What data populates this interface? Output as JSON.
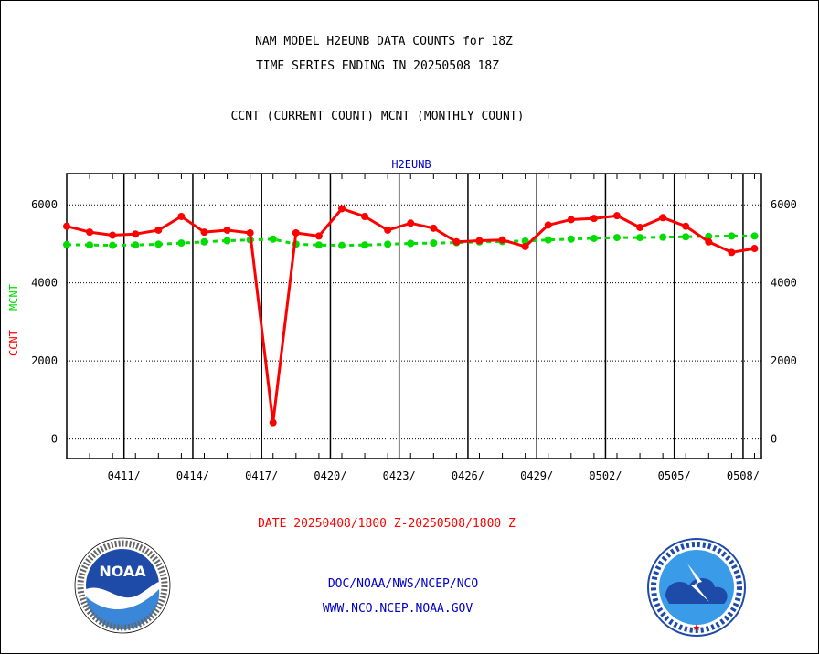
{
  "titles": {
    "line1": "NAM MODEL H2EUNB DATA COUNTS for 18Z",
    "line2": "TIME SERIES ENDING IN 20250508 18Z",
    "line3": "CCNT (CURRENT COUNT) MCNT (MONTHLY COUNT)"
  },
  "footer": {
    "date_range": "DATE 20250408/1800 Z-20250508/1800 Z",
    "link1": "DOC/NOAA/NWS/NCEP/NCO",
    "link2": "WWW.NCO.NCEP.NOAA.GOV"
  },
  "logos": {
    "noaa": {
      "text": "NOAA",
      "ring_text": "NATIONAL OCEANIC AND ATMOSPHERIC ADMINISTRATION · U.S. DEPARTMENT OF COMMERCE"
    },
    "nws": {
      "ring_text": "NATIONAL WEATHER SERVICE"
    }
  },
  "colors": {
    "ccnt": "#ff0000",
    "mcnt": "#00dd00",
    "station": "#0000cc",
    "axis": "#000000"
  },
  "chart_data": {
    "type": "line",
    "title": "H2EUNB",
    "ylabel_parts": [
      {
        "text": "CCNT",
        "color": "#ff0000"
      },
      {
        "text": "MCNT",
        "color": "#00dd00"
      }
    ],
    "ylim": [
      -500,
      6800
    ],
    "yticks": [
      0,
      2000,
      4000,
      6000
    ],
    "xlim": [
      0,
      30.3
    ],
    "xticks": [
      {
        "x": 2.5,
        "label": "0411/"
      },
      {
        "x": 5.5,
        "label": "0414/"
      },
      {
        "x": 8.5,
        "label": "0417/"
      },
      {
        "x": 11.5,
        "label": "0420/"
      },
      {
        "x": 14.5,
        "label": "0423/"
      },
      {
        "x": 17.5,
        "label": "0426/"
      },
      {
        "x": 20.5,
        "label": "0429/"
      },
      {
        "x": 23.5,
        "label": "0502/"
      },
      {
        "x": 26.5,
        "label": "0505/"
      },
      {
        "x": 29.5,
        "label": "0508/"
      }
    ],
    "grid": true,
    "series": [
      {
        "name": "CCNT",
        "x": [
          0,
          1,
          2,
          3,
          4,
          5,
          6,
          7,
          8,
          9,
          10,
          11,
          12,
          13,
          14,
          15,
          16,
          17,
          18,
          19,
          20,
          21,
          22,
          23,
          24,
          25,
          26,
          27,
          28,
          29,
          30
        ],
        "values": [
          5450,
          5300,
          5220,
          5250,
          5350,
          5700,
          5300,
          5350,
          5280,
          420,
          5280,
          5200,
          5900,
          5700,
          5350,
          5530,
          5400,
          5050,
          5080,
          5100,
          4930,
          5480,
          5620,
          5650,
          5720,
          5420,
          5670,
          5450,
          5050,
          4780,
          4880
        ]
      },
      {
        "name": "MCNT",
        "x": [
          0,
          1,
          2,
          3,
          4,
          5,
          6,
          7,
          8,
          9,
          10,
          11,
          12,
          13,
          14,
          15,
          16,
          17,
          18,
          19,
          20,
          21,
          22,
          23,
          24,
          25,
          26,
          27,
          28,
          29,
          30
        ],
        "values": [
          4980,
          4970,
          4960,
          4970,
          4990,
          5020,
          5050,
          5080,
          5100,
          5120,
          4990,
          4970,
          4960,
          4970,
          4990,
          5010,
          5020,
          5030,
          5050,
          5060,
          5070,
          5100,
          5120,
          5140,
          5160,
          5160,
          5170,
          5180,
          5190,
          5200,
          5200
        ]
      }
    ]
  }
}
